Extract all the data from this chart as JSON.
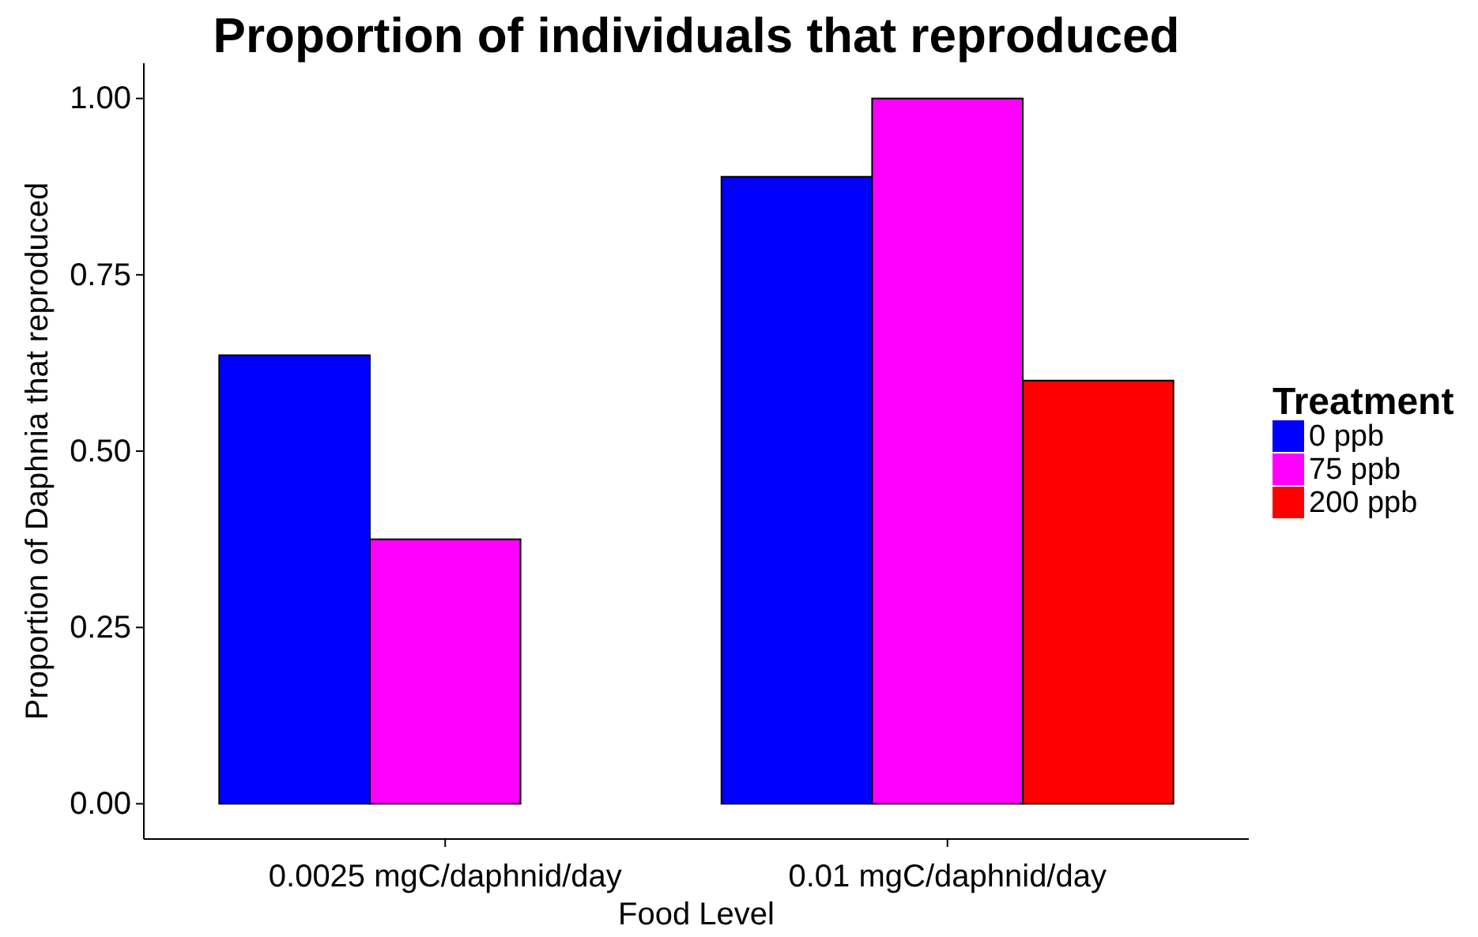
{
  "chart_data": {
    "type": "bar",
    "title": "Proportion of individuals that reproduced",
    "xlabel": "Food Level",
    "ylabel": "Proportion of Daphnia that reproduced",
    "legend_title": "Treatment",
    "categories": [
      "0.0025 mgC/daphnid/day",
      "0.01 mgC/daphnid/day"
    ],
    "series": [
      {
        "name": "0 ppb",
        "color": "#0000ff",
        "values": [
          0.636,
          0.889
        ]
      },
      {
        "name": "75 ppb",
        "color": "#ff00ff",
        "values": [
          0.375,
          1.0
        ]
      },
      {
        "name": "200 ppb",
        "color": "#ff0000",
        "values": [
          0,
          0.6
        ]
      }
    ],
    "ylim": [
      -0.05,
      1.05
    ],
    "yticks": [
      {
        "value": 0,
        "label": "0.00"
      },
      {
        "value": 0.25,
        "label": "0.25"
      },
      {
        "value": 0.5,
        "label": "0.50"
      },
      {
        "value": 0.75,
        "label": "0.75"
      },
      {
        "value": 1,
        "label": "1.00"
      }
    ],
    "grid": false,
    "legend": "right"
  }
}
